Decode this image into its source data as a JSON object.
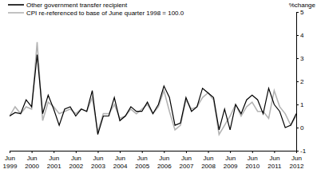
{
  "chart_data": {
    "type": "line",
    "y_label": "%change",
    "categories": [
      "Jun 1999",
      null,
      null,
      null,
      "Jun 2000",
      null,
      null,
      null,
      "Jun 2001",
      null,
      null,
      null,
      "Jun 2002",
      null,
      null,
      null,
      "Jun 2003",
      null,
      null,
      null,
      "Jun 2004",
      null,
      null,
      null,
      "Jun 2005",
      null,
      null,
      null,
      "Jun 2006",
      null,
      null,
      null,
      "Jun 2007",
      null,
      null,
      null,
      "Jun 2008",
      null,
      null,
      null,
      "Jun 2009",
      null,
      null,
      null,
      "Jun 2010",
      null,
      null,
      null,
      "Jun 2011",
      null,
      null,
      null,
      "Jun 2012"
    ],
    "series": [
      {
        "name": "Other government transfer recipient",
        "color": "#000000",
        "values": [
          0.5,
          0.65,
          0.6,
          1.2,
          0.9,
          3.15,
          0.6,
          1.4,
          0.8,
          0.1,
          0.8,
          0.9,
          0.5,
          0.8,
          0.7,
          1.6,
          -0.3,
          0.5,
          0.5,
          1.3,
          0.3,
          0.5,
          0.9,
          0.7,
          0.7,
          1.1,
          0.6,
          1.0,
          1.8,
          1.3,
          0.1,
          0.2,
          1.3,
          0.7,
          0.9,
          1.7,
          1.5,
          1.3,
          -0.1,
          0.8,
          -0.1,
          1.0,
          0.6,
          1.2,
          1.4,
          1.2,
          0.6,
          1.7,
          1.0,
          0.7,
          0.0,
          0.1,
          0.6
        ]
      },
      {
        "name": "CPI re-referenced to base of June quarter 1998 = 100.0",
        "color": "#b3b3b3",
        "values": [
          0.5,
          0.9,
          0.6,
          0.9,
          0.8,
          3.7,
          0.3,
          1.1,
          0.9,
          0.6,
          0.7,
          0.8,
          0.6,
          0.8,
          0.7,
          1.3,
          -0.2,
          0.6,
          0.6,
          1.0,
          0.4,
          0.5,
          0.8,
          0.6,
          0.8,
          1.0,
          0.6,
          0.9,
          1.6,
          0.7,
          -0.1,
          0.1,
          1.2,
          0.8,
          0.9,
          1.3,
          1.5,
          1.2,
          -0.3,
          0.1,
          0.5,
          1.0,
          0.5,
          0.9,
          1.1,
          0.7,
          0.7,
          0.4,
          1.6,
          0.9,
          0.6,
          0.1,
          0.5
        ]
      }
    ],
    "ylim": [
      -1,
      5
    ],
    "yticks": [
      -1,
      0,
      1,
      2,
      3,
      4,
      5
    ],
    "legend": "top-left",
    "grid": false
  }
}
